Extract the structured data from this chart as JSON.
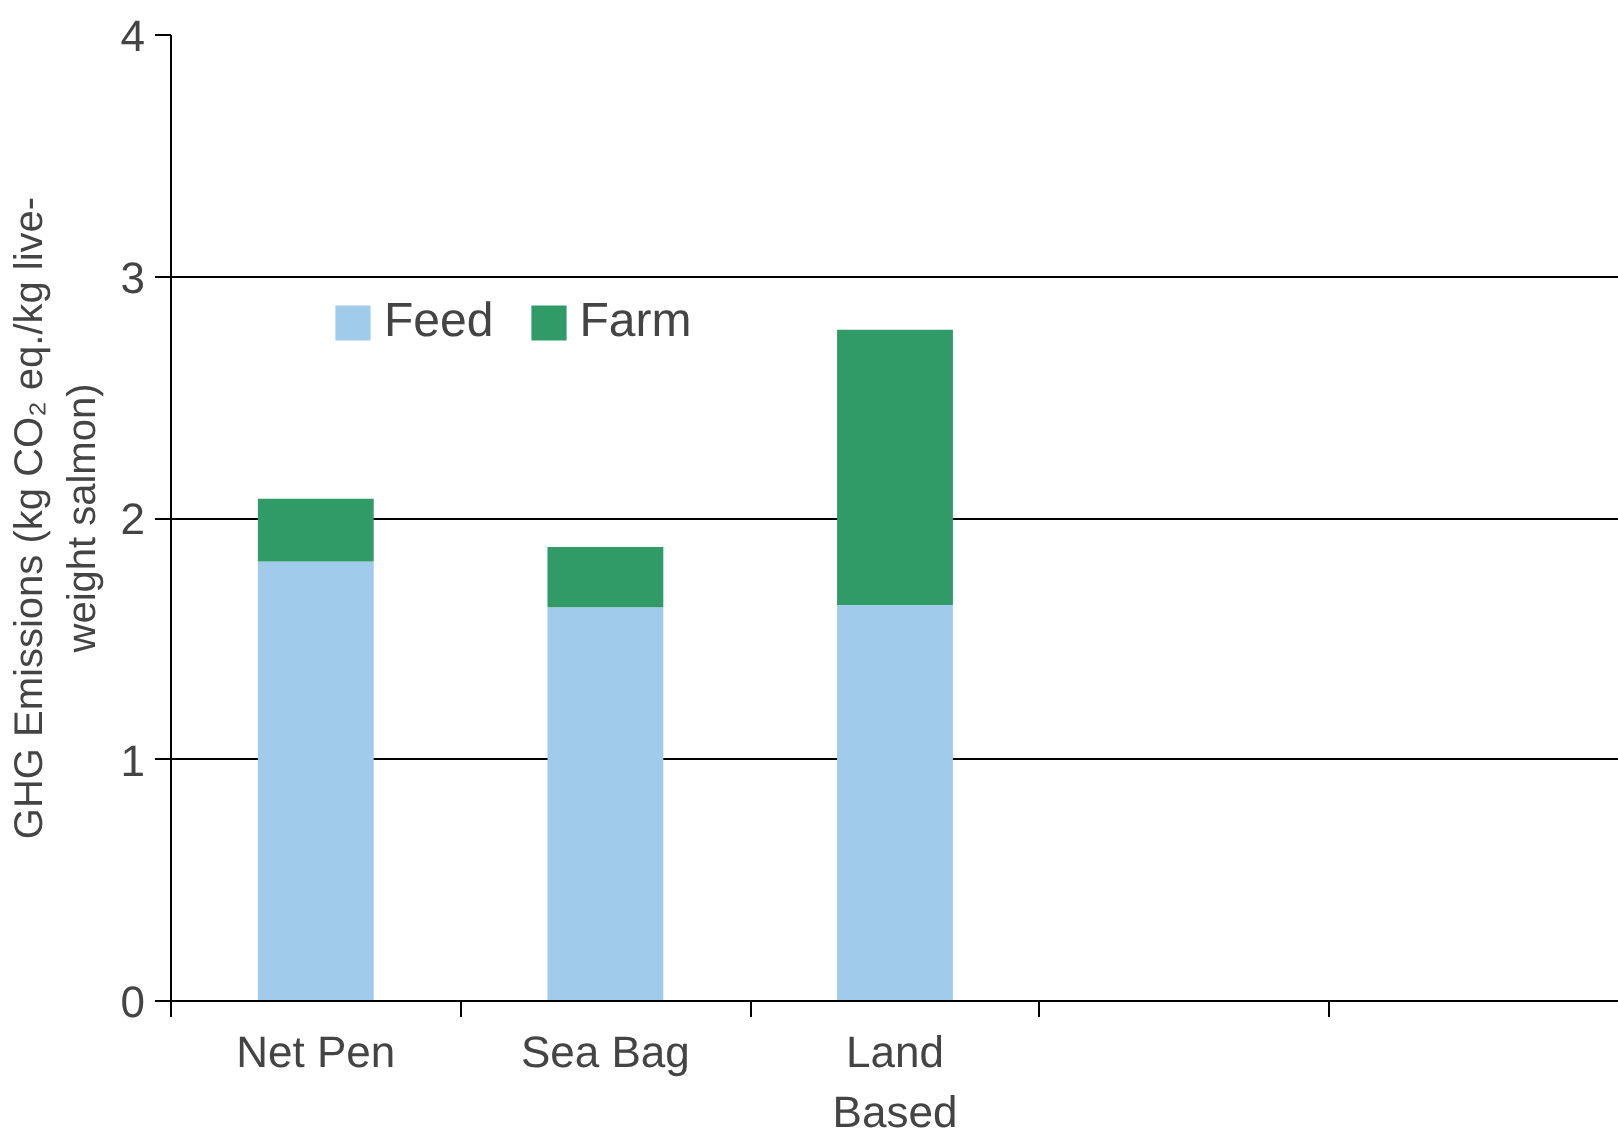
{
  "chart_data": {
    "type": "bar",
    "stacked": true,
    "ylabel": "GHG Emissions (kg CO₂ eq./kg live-\nweight salmon)",
    "categories": [
      "Net Pen",
      "Sea Bag",
      "Land\nBased",
      null,
      null
    ],
    "series": [
      {
        "name": "Feed",
        "color": "#a1cbeb",
        "values": [
          1.82,
          1.63,
          1.64,
          null,
          null
        ]
      },
      {
        "name": "Farm",
        "color": "#319b67",
        "values": [
          0.26,
          0.25,
          1.14,
          null,
          null
        ]
      }
    ],
    "ylim": [
      0,
      4
    ],
    "yticks": [
      0,
      1,
      2,
      3,
      4
    ],
    "grid": "y",
    "legend": "top left"
  }
}
